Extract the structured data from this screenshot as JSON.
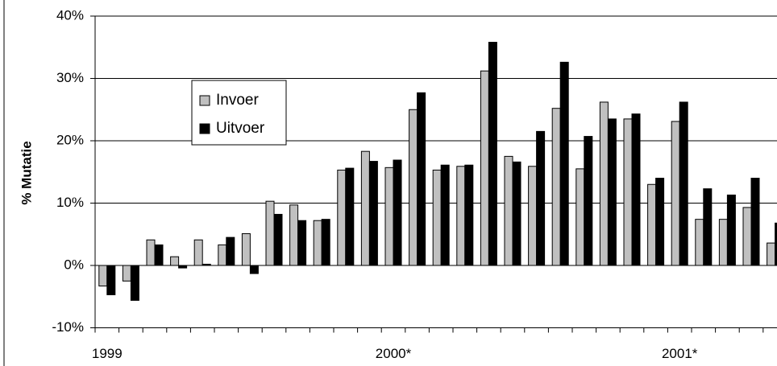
{
  "chart_data": {
    "type": "bar",
    "y_label": "% Mutatie",
    "categories": [
      "1999",
      null,
      null,
      null,
      null,
      null,
      null,
      null,
      null,
      null,
      null,
      null,
      "2000*",
      null,
      null,
      null,
      null,
      null,
      null,
      null,
      null,
      null,
      null,
      null,
      "2001*",
      null,
      null,
      null,
      null
    ],
    "series": [
      {
        "name": "Invoer",
        "color": "#c0c0c0",
        "values": [
          -3.3,
          -2.5,
          4.1,
          1.4,
          4.1,
          3.3,
          5.1,
          10.3,
          9.7,
          7.2,
          15.3,
          18.3,
          15.7,
          25.0,
          15.3,
          15.9,
          31.2,
          17.5,
          15.9,
          25.2,
          15.5,
          26.2,
          23.5,
          13.0,
          23.1,
          7.4,
          7.4,
          9.3,
          3.6
        ]
      },
      {
        "name": "Uitvoer",
        "color": "#000000",
        "values": [
          -4.7,
          -5.6,
          3.3,
          -0.4,
          0.2,
          4.5,
          -1.3,
          8.2,
          7.2,
          7.4,
          15.6,
          16.7,
          16.9,
          27.7,
          16.1,
          16.1,
          35.8,
          16.6,
          21.5,
          32.6,
          20.7,
          23.5,
          24.3,
          14.0,
          26.2,
          12.3,
          11.3,
          14.0,
          6.8
        ]
      }
    ],
    "ylim": [
      -10,
      40
    ],
    "yticks": [
      {
        "value": -10,
        "label": "-10%"
      },
      {
        "value": 0,
        "label": "0%"
      },
      {
        "value": 10,
        "label": "10%"
      },
      {
        "value": 20,
        "label": "20%"
      },
      {
        "value": 30,
        "label": "30%"
      },
      {
        "value": 40,
        "label": "40%"
      }
    ],
    "grid": true,
    "legend": "upper left"
  }
}
